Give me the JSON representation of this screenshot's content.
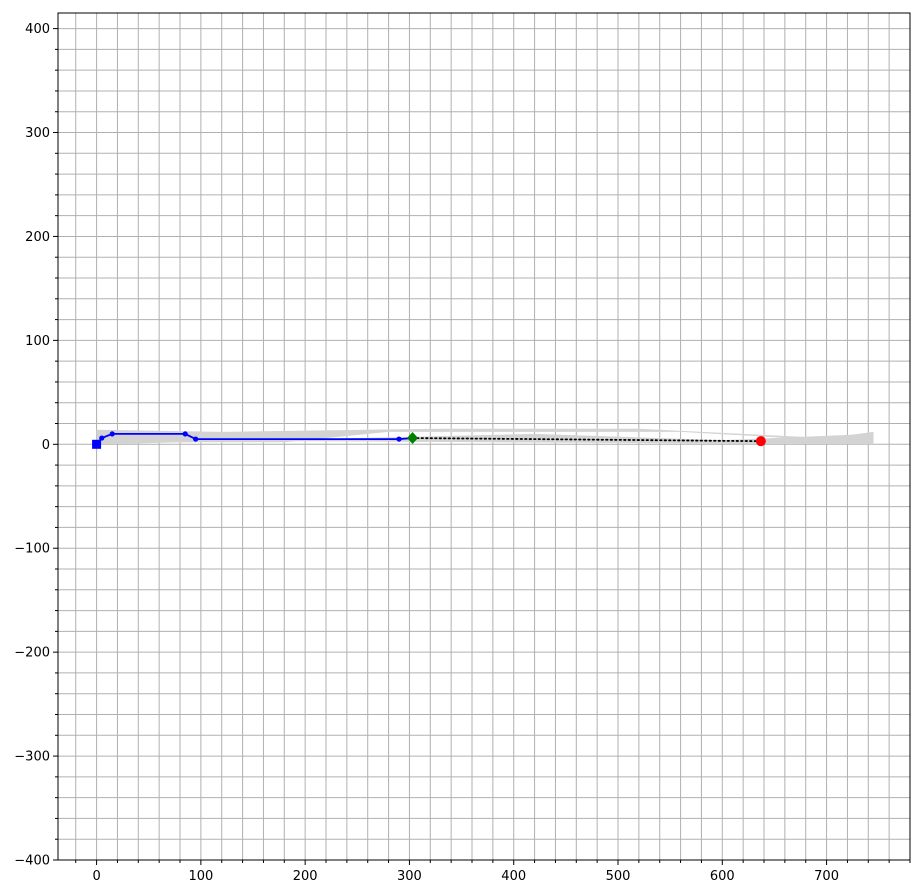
{
  "chart_data": {
    "type": "line",
    "title": "",
    "xlabel": "",
    "ylabel": "",
    "xlim": [
      -37,
      780
    ],
    "ylim": [
      -400,
      415
    ],
    "x_ticks": [
      0,
      100,
      200,
      300,
      400,
      500,
      600,
      700
    ],
    "y_ticks": [
      -400,
      -300,
      -200,
      -100,
      0,
      100,
      200,
      300,
      400
    ],
    "x_tick_labels": [
      "0",
      "100",
      "200",
      "300",
      "400",
      "500",
      "600",
      "700"
    ],
    "y_tick_labels": [
      "−400",
      "−300",
      "−200",
      "−100",
      "0",
      "100",
      "200",
      "300",
      "400"
    ],
    "minor_step": 20,
    "grid": true,
    "colors": {
      "track": "#d3d3d3",
      "path": "#0000ff",
      "start": "#0000ff",
      "current": "#008000",
      "target": "#ff0000",
      "guide": "#000000",
      "grid": "#b0b0b0"
    },
    "track_shapes": [
      [
        [
          0,
          2
        ],
        [
          180,
          2
        ],
        [
          280,
          12
        ],
        [
          560,
          12
        ],
        [
          700,
          4
        ],
        [
          745,
          2
        ],
        [
          745,
          12
        ],
        [
          700,
          6
        ],
        [
          520,
          15
        ],
        [
          330,
          15
        ],
        [
          120,
          12
        ],
        [
          0,
          14
        ]
      ],
      [
        [
          0,
          0
        ],
        [
          420,
          10
        ],
        [
          600,
          4
        ],
        [
          745,
          10
        ],
        [
          745,
          0
        ],
        [
          0,
          4
        ]
      ]
    ],
    "series": [
      {
        "role": "path",
        "style": "solid",
        "marker": "circle",
        "x": [
          0,
          5,
          15,
          85,
          95,
          290,
          303
        ],
        "y": [
          0,
          6,
          10,
          10,
          5,
          5,
          6
        ]
      },
      {
        "role": "guide",
        "style": "dotted",
        "marker": "none",
        "x": [
          303,
          420,
          637
        ],
        "y": [
          6,
          5,
          3
        ]
      }
    ],
    "markers": {
      "start": {
        "x": 0,
        "y": 0,
        "shape": "square"
      },
      "current": {
        "x": 303,
        "y": 6,
        "shape": "diamond"
      },
      "target": {
        "x": 637,
        "y": 3,
        "shape": "circle"
      }
    }
  }
}
